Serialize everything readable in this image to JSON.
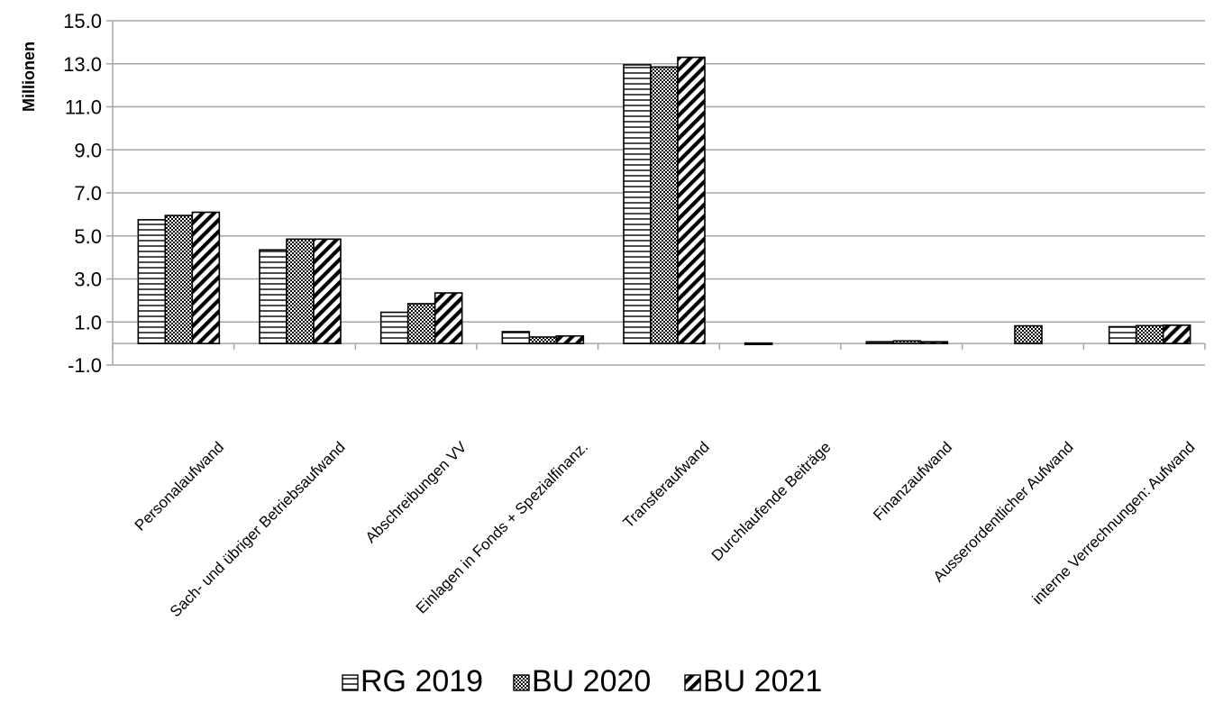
{
  "chart_data": {
    "type": "bar",
    "ylabel": "Millionen",
    "xlabel": "",
    "ylim": [
      -1.0,
      15.0
    ],
    "yticks": [
      "15.0",
      "13.0",
      "11.0",
      "9.0",
      "7.0",
      "5.0",
      "3.0",
      "1.0",
      "-1.0"
    ],
    "grid": true,
    "legend_position": "bottom",
    "categories": [
      "Personalaufwand",
      "Sach- und übriger Betriebsaufwand",
      "Abschreibungen VV",
      "Einlagen in Fonds + Spezialfinanz.",
      "Transferaufwand",
      "Durchlaufende Beiträge",
      "Finanzaufwand",
      "Ausserordentlicher Aufwand",
      "interne Verrechnungen: Aufwand"
    ],
    "series": [
      {
        "name": "RG 2019",
        "pattern": "horizontal-lines",
        "values": [
          5.75,
          4.35,
          1.45,
          0.55,
          12.95,
          0.02,
          0.08,
          0,
          0.78
        ]
      },
      {
        "name": "BU 2020",
        "pattern": "dotted-crosshatch",
        "values": [
          5.95,
          4.85,
          1.85,
          0.3,
          12.85,
          0,
          0.12,
          0.82,
          0.83
        ]
      },
      {
        "name": "BU 2021",
        "pattern": "diagonal-lines",
        "values": [
          6.1,
          4.85,
          2.35,
          0.35,
          13.3,
          0,
          0.08,
          0,
          0.85
        ]
      }
    ]
  },
  "colors": {
    "grid": "#a6a6a6",
    "bar_stroke": "#000000",
    "fill": "#ffffff"
  }
}
